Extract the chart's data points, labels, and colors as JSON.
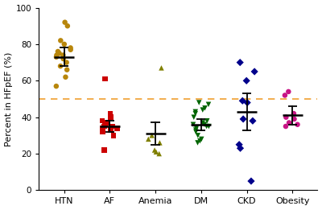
{
  "ylabel": "Percent in HFpEF (%)",
  "categories": [
    "HTN",
    "AF",
    "Anemia",
    "DM",
    "CKD",
    "Obesity"
  ],
  "ylim": [
    0,
    100
  ],
  "yticks": [
    0,
    20,
    40,
    60,
    80,
    100
  ],
  "ytick_labels": [
    "0",
    "20",
    "40",
    "60",
    "80",
    "100"
  ],
  "dashed_line_y": 50,
  "dashed_line_color": "#F0A030",
  "groups": {
    "HTN": {
      "points": [
        92,
        90,
        82,
        80,
        78,
        77,
        76,
        75,
        74,
        74,
        73,
        72,
        70,
        68,
        66,
        62,
        57
      ],
      "mean": 73,
      "ci_low": 68,
      "ci_high": 78,
      "color": "#B8860B",
      "marker": "o"
    },
    "AF": {
      "points": [
        61,
        42,
        40,
        38,
        37,
        36,
        35,
        35,
        34,
        34,
        33,
        32,
        30,
        22
      ],
      "mean": 35,
      "ci_low": 32,
      "ci_high": 38,
      "color": "#CC0000",
      "marker": "s"
    },
    "Anemia": {
      "points": [
        67,
        30,
        28,
        26,
        22,
        21,
        20
      ],
      "mean": 31,
      "ci_low": 25,
      "ci_high": 37,
      "color": "#808000",
      "marker": "^"
    },
    "DM": {
      "points": [
        48,
        47,
        45,
        44,
        43,
        42,
        40,
        38,
        37,
        36,
        36,
        35,
        35,
        34,
        33,
        32,
        30,
        28,
        27,
        26
      ],
      "mean": 36,
      "ci_low": 33,
      "ci_high": 39,
      "color": "#006400",
      "marker": "v"
    },
    "CKD": {
      "points": [
        70,
        65,
        60,
        49,
        48,
        39,
        38,
        25,
        23,
        5
      ],
      "mean": 43,
      "ci_low": 33,
      "ci_high": 53,
      "color": "#00008B",
      "marker": "D"
    },
    "Obesity": {
      "points": [
        54,
        52,
        42,
        40,
        39,
        37,
        36,
        35
      ],
      "mean": 41,
      "ci_low": 36,
      "ci_high": 46,
      "color": "#C71585",
      "marker": "o"
    }
  },
  "background_color": "#FFFFFF",
  "figsize": [
    4.0,
    2.61
  ],
  "dpi": 100
}
